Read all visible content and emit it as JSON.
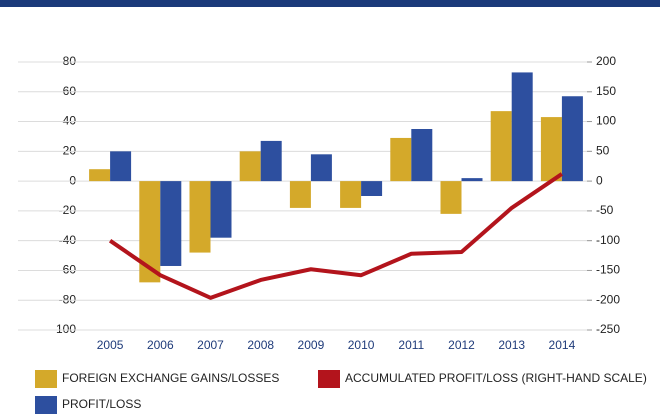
{
  "chart_data": {
    "type": "bar",
    "categories": [
      "2005",
      "2006",
      "2007",
      "2008",
      "2009",
      "2010",
      "2011",
      "2012",
      "2013",
      "2014"
    ],
    "series": [
      {
        "name": "FOREIGN EXCHANGE GAINS/LOSSES",
        "color": "#d4a92a",
        "values": [
          8,
          -68,
          -48,
          20,
          -18,
          -18,
          29,
          -22,
          47,
          43
        ]
      },
      {
        "name": "PROFIT/LOSS",
        "color": "#2d4f9f",
        "values": [
          20,
          -57,
          -38,
          27,
          18,
          -10,
          35,
          2,
          73,
          57
        ]
      },
      {
        "name": "ACCUMULATED PROFIT/LOSS (RIGHT-HAND SCALE)",
        "color": "#b3141c",
        "type": "line",
        "axis": "y2",
        "values": [
          -100,
          -158,
          -196,
          -166,
          -148,
          -158,
          -122,
          -119,
          -45,
          12
        ]
      }
    ],
    "ylim": [
      -100,
      80
    ],
    "yticks": [
      -100,
      -80,
      -60,
      -40,
      -20,
      0,
      20,
      40,
      60,
      80
    ],
    "y2lim": [
      -250,
      200
    ],
    "y2ticks": [
      -250,
      -200,
      -150,
      -100,
      -50,
      0,
      50,
      100,
      150,
      200
    ],
    "grid": true
  }
}
